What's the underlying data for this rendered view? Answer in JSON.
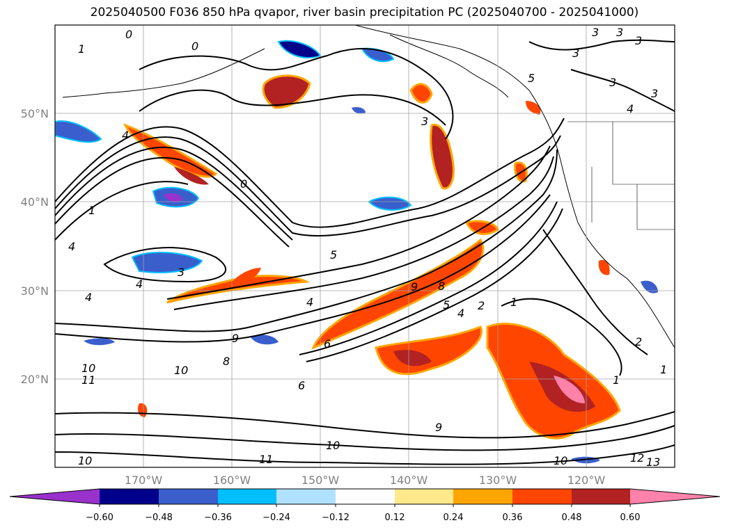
{
  "title": "2025040500 F036 850 hPa qvapor, river basin precipitation PC (2025040700 - 2025041000)",
  "map": {
    "lon_range": [
      -180,
      -110
    ],
    "lat_range": [
      10,
      60
    ],
    "lat_labels": [
      "50°N",
      "40°N",
      "30°N",
      "20°N"
    ],
    "lon_labels": [
      "170°W",
      "160°W",
      "150°W",
      "140°W",
      "130°W",
      "120°W"
    ],
    "contour_labels": [
      "1",
      "0",
      "3",
      "5",
      "2",
      "4",
      "9",
      "8",
      "6",
      "10",
      "11",
      "12",
      "13"
    ]
  },
  "colorbar": {
    "ticks": [
      "−0.60",
      "−0.48",
      "−0.36",
      "−0.24",
      "−0.12",
      "0.12",
      "0.24",
      "0.36",
      "0.48",
      "0.60"
    ],
    "colors": {
      "lt_-0.60": "#9932cc",
      "-0.60_-0.48": "#00008b",
      "-0.48_-0.36": "#3a5fcd",
      "-0.36_-0.24": "#00bfff",
      "-0.24_-0.12": "#b0e2ff",
      "-0.12_0.12": "#ffffff",
      "0.12_0.24": "#ffe98a",
      "0.24_0.36": "#ffa500",
      "0.36_0.48": "#ff4500",
      "0.48_0.60": "#b22222",
      "gt_0.60": "#ff82ab"
    }
  }
}
